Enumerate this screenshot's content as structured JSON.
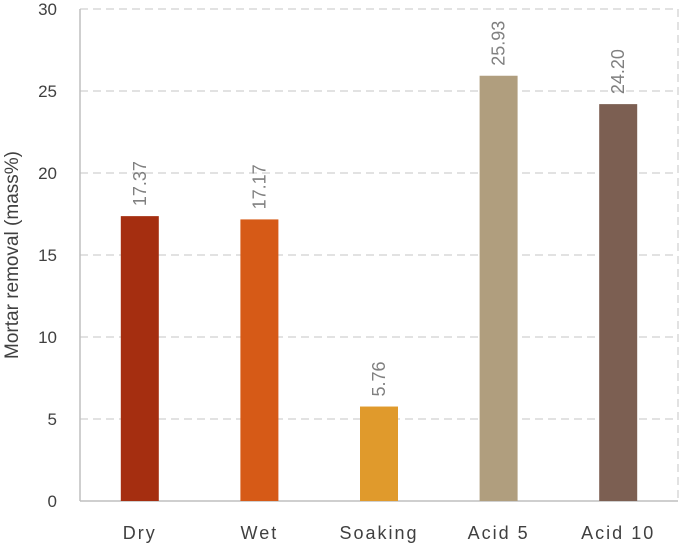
{
  "chart_data": {
    "type": "bar",
    "title": "",
    "xlabel": "",
    "ylabel": "Mortar removal (mass%)",
    "ylim": [
      0,
      30
    ],
    "yticks": [
      0,
      5,
      10,
      15,
      20,
      25,
      30
    ],
    "grid": true,
    "categories": [
      "Dry",
      "Wet",
      "Soaking",
      "Acid 5",
      "Acid 10"
    ],
    "values": [
      17.37,
      17.17,
      5.76,
      25.93,
      24.2
    ],
    "data_labels": [
      "17.37",
      "17.17",
      "5.76",
      "25.93",
      "24.20"
    ],
    "colors": [
      "#a52e10",
      "#d65a17",
      "#e09a2c",
      "#b09e7e",
      "#7c5f52"
    ]
  }
}
